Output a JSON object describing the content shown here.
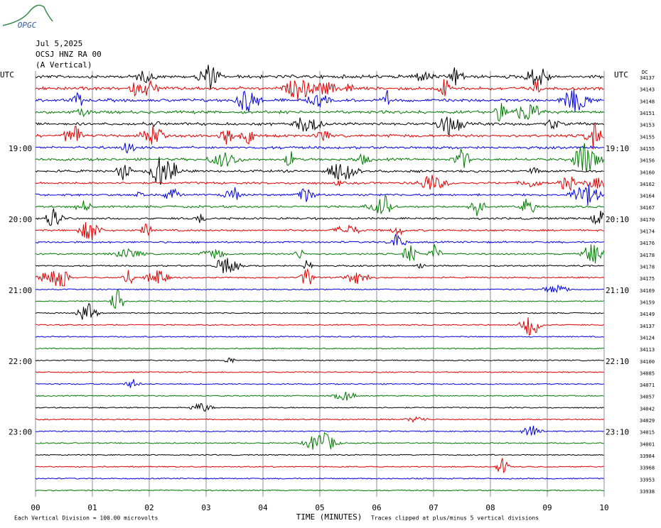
{
  "logo": "OPGC",
  "header": {
    "date": "Jul 5,2025",
    "station": "OCSJ HNZ RA 00",
    "component": "(A Vertical)"
  },
  "left_axis": {
    "title": "UTC",
    "labels": [
      "19:00",
      "20:00",
      "21:00",
      "22:00",
      "23:00"
    ]
  },
  "right_axis": {
    "title": "UTC",
    "labels": [
      "19:10",
      "20:10",
      "21:10",
      "22:10",
      "23:10"
    ],
    "dc_title": "DC",
    "dc_values": [
      34137,
      34143,
      34148,
      34151,
      34153,
      34155,
      34155,
      34156,
      34160,
      34162,
      34164,
      34167,
      34170,
      34174,
      34176,
      34178,
      34178,
      34175,
      34169,
      34159,
      34149,
      34137,
      34124,
      34113,
      34100,
      34085,
      34071,
      34057,
      34042,
      34029,
      34015,
      34001,
      33984,
      33968,
      33953,
      33938
    ]
  },
  "x_axis": {
    "title": "TIME (MINUTES)",
    "ticks": [
      "00",
      "01",
      "02",
      "03",
      "04",
      "05",
      "06",
      "07",
      "08",
      "09",
      "10"
    ]
  },
  "footer": {
    "scale": "Each Vertical Division =  100.00 microvolts",
    "clip": "Traces clipped at plus/minus 5 vertical divisions"
  }
}
